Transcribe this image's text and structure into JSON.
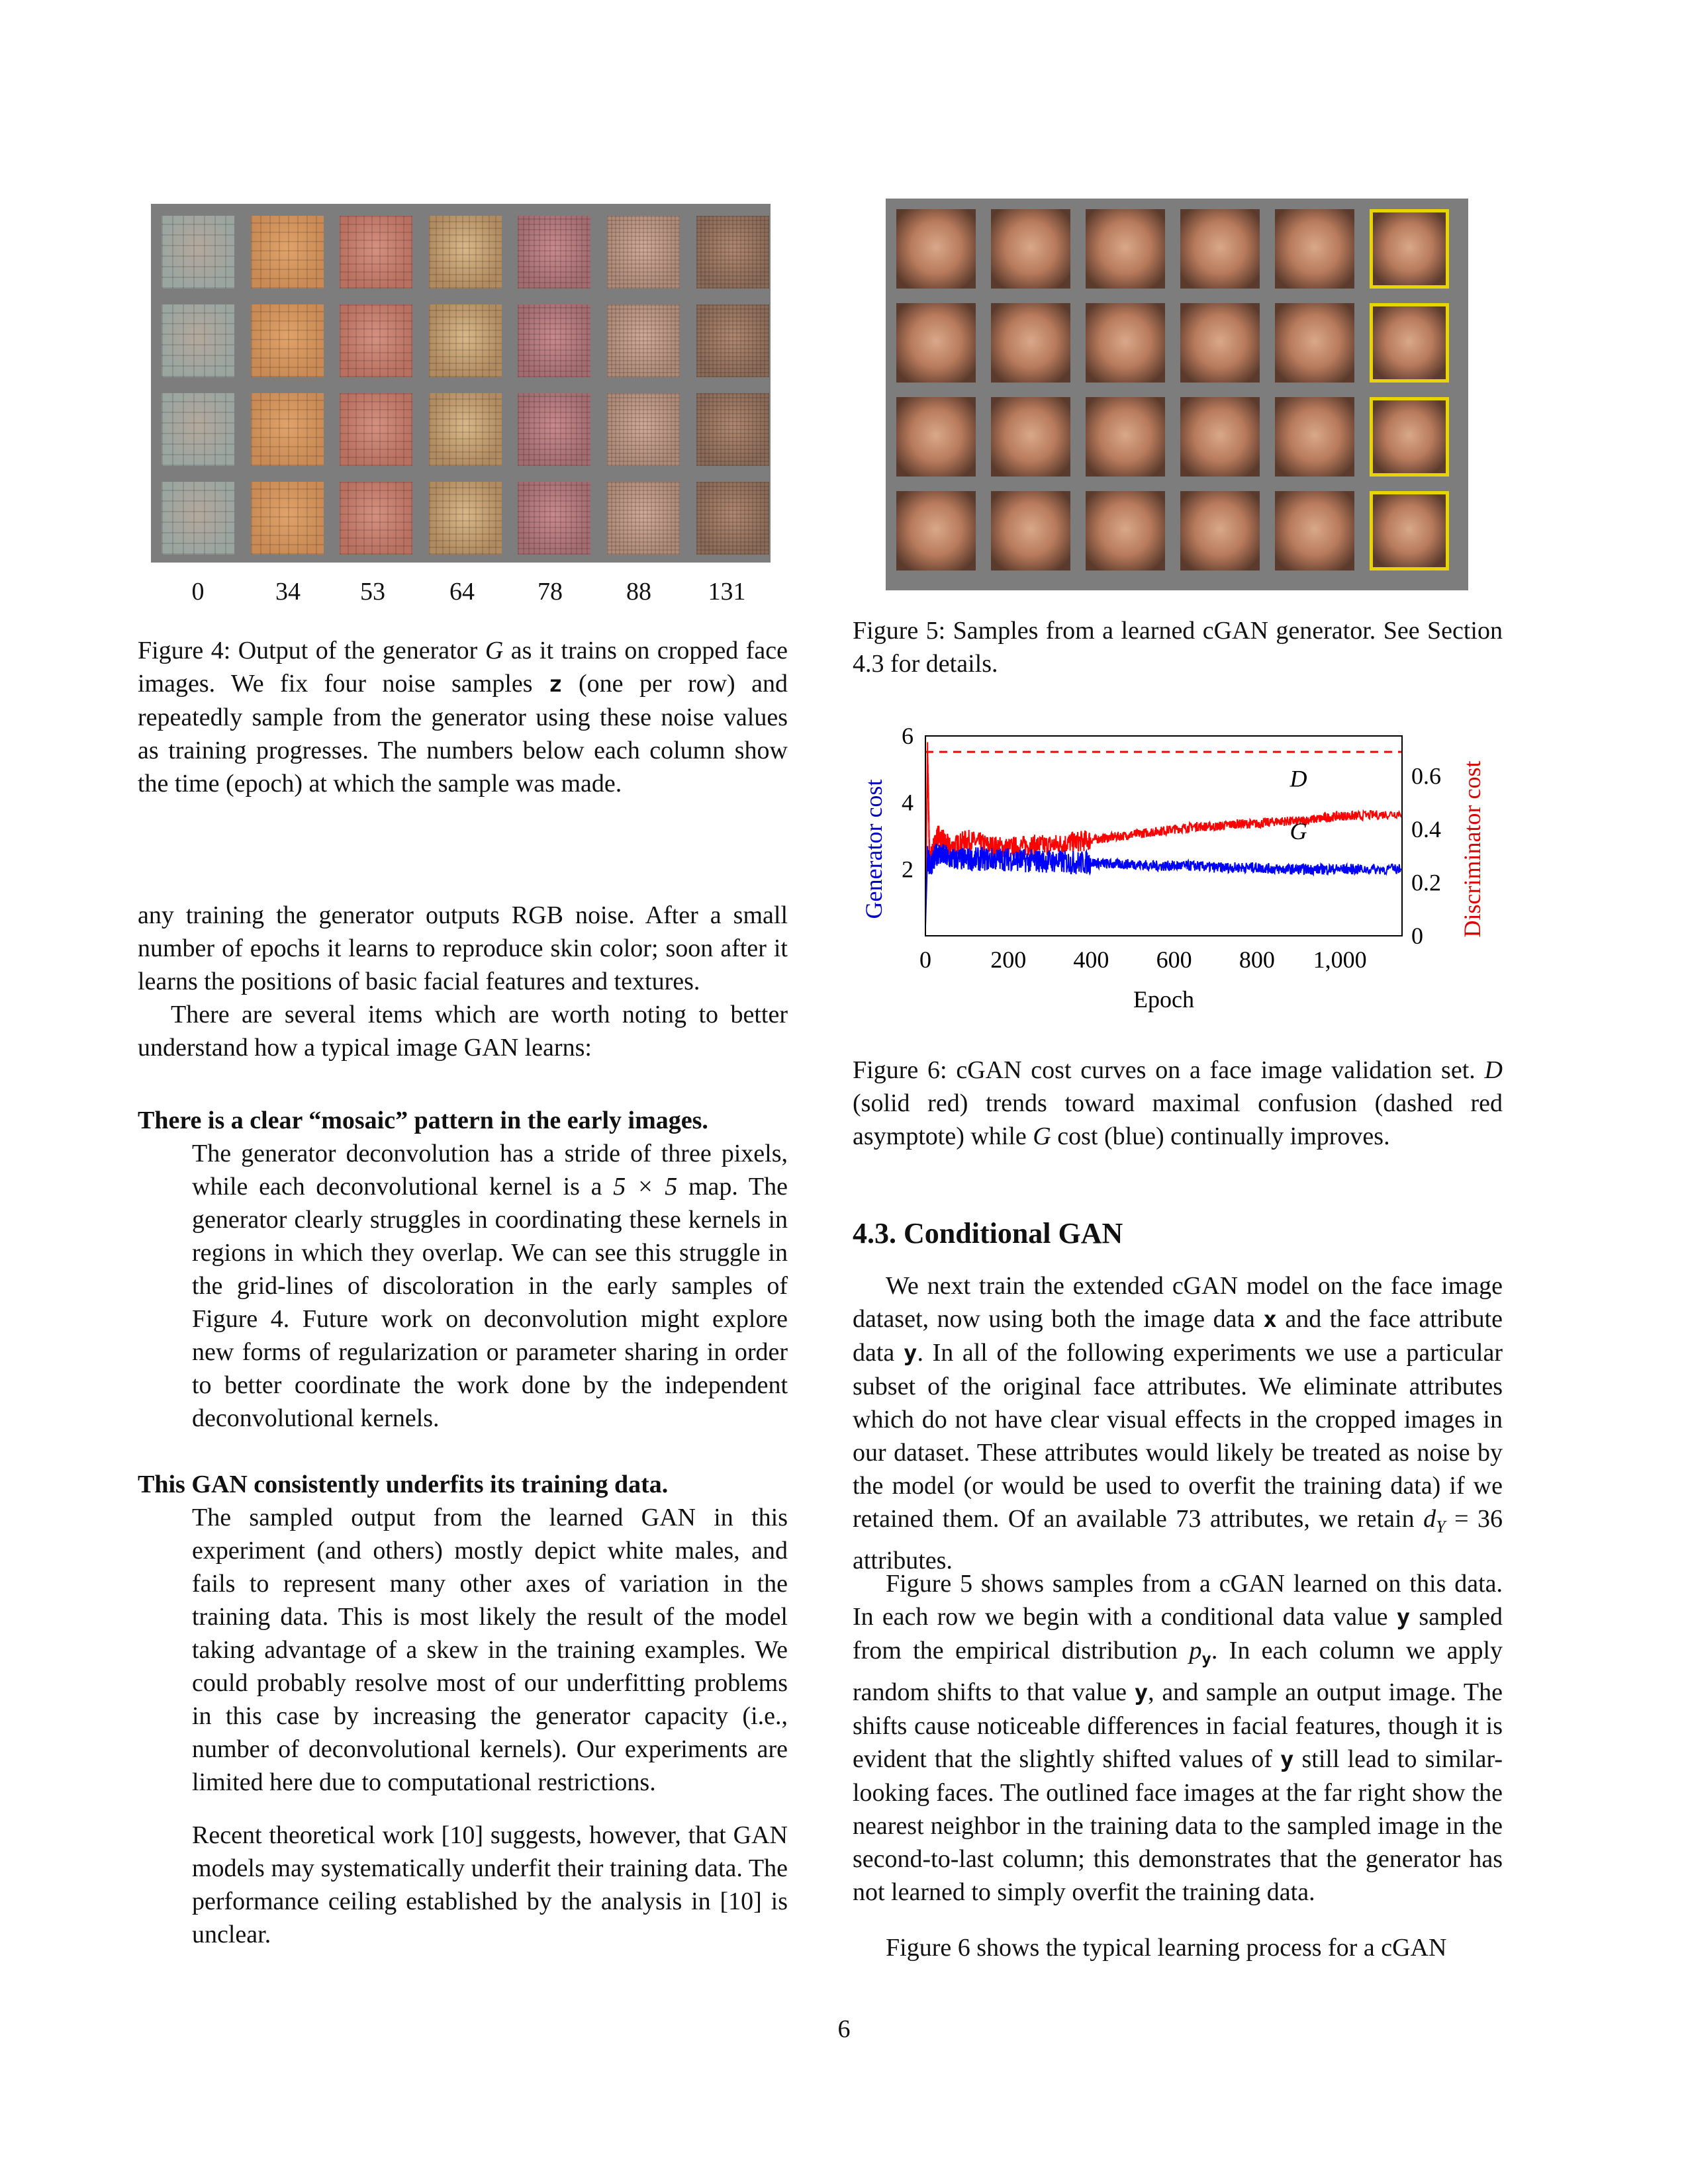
{
  "figure4": {
    "epoch_labels": [
      "0",
      "34",
      "53",
      "64",
      "78",
      "88",
      "131"
    ],
    "caption_prefix": "Figure 4: Output of the generator",
    "caption_sym_G": "G",
    "caption_mid": "as it trains on cropped face images. We fix four noise samples",
    "caption_sym_z": "z",
    "caption_rest": "(one per row) and repeatedly sample from the generator using these noise values as training progresses. The numbers below each column show the time (epoch) at which the sample was made."
  },
  "figure5": {
    "caption": "Figure 5: Samples from a learned cGAN generator. See Section 4.3 for details."
  },
  "figure6": {
    "caption_prefix": "Figure 6: cGAN cost curves on a face image validation set.",
    "caption_D": "D",
    "caption_mid": "(solid red) trends toward maximal confusion (dashed red asymptote) while",
    "caption_G": "G",
    "caption_rest": "cost (blue) continually improves."
  },
  "chart_data": {
    "type": "line",
    "xlabel": "Epoch",
    "ylabel": "Generator cost",
    "y2label": "Discriminator cost",
    "x_ticks": [
      "0",
      "200",
      "400",
      "600",
      "800",
      "1,000"
    ],
    "y_ticks": [
      "2",
      "4",
      "6"
    ],
    "y2_ticks": [
      "0",
      "0.2",
      "0.4",
      "0.6"
    ],
    "xlim": [
      0,
      1150
    ],
    "ylim": [
      0,
      6
    ],
    "y2lim": [
      0,
      0.75
    ],
    "series": [
      {
        "name": "D",
        "axis": "right",
        "color": "#ff0000",
        "x": [
          0,
          5,
          10,
          30,
          60,
          100,
          150,
          200,
          250,
          300,
          350,
          400,
          450,
          500,
          550,
          600,
          650,
          700,
          750,
          800,
          850,
          900,
          950,
          1000,
          1050,
          1150
        ],
        "y": [
          0.05,
          0.7,
          0.28,
          0.38,
          0.33,
          0.36,
          0.34,
          0.33,
          0.34,
          0.34,
          0.35,
          0.36,
          0.37,
          0.38,
          0.39,
          0.4,
          0.41,
          0.41,
          0.42,
          0.42,
          0.43,
          0.43,
          0.44,
          0.45,
          0.45,
          0.46
        ]
      },
      {
        "name": "G",
        "axis": "left",
        "color": "#0000ff",
        "x": [
          0,
          5,
          10,
          30,
          60,
          100,
          150,
          200,
          250,
          300,
          350,
          400,
          450,
          500,
          550,
          600,
          650,
          700,
          750,
          800,
          850,
          900,
          950,
          1000,
          1050,
          1150
        ],
        "y": [
          0.3,
          2.4,
          2.1,
          2.5,
          2.3,
          2.3,
          2.3,
          2.3,
          2.25,
          2.25,
          2.2,
          2.2,
          2.15,
          2.15,
          2.1,
          2.1,
          2.1,
          2.05,
          2.05,
          2.05,
          2.0,
          2.0,
          2.0,
          2.0,
          2.0,
          2.0
        ]
      },
      {
        "name": "",
        "axis": "right",
        "color": "#ff0000",
        "dashed": true,
        "x": [
          0,
          1150
        ],
        "y": [
          0.69,
          0.69
        ]
      }
    ],
    "annotations": [
      {
        "text": "D",
        "x": 900,
        "y2": 0.56
      },
      {
        "text": "G",
        "x": 900,
        "y": 2.9
      }
    ]
  },
  "left_column": {
    "intro_para": "any training the generator outputs RGB noise. After a small number of epochs it learns to reproduce skin color; soon after it learns the positions of basic facial features and textures.",
    "items_para": "There are several items which are worth noting to better understand how a typical image GAN learns:",
    "item1_heading": "There is a clear “mosaic” pattern in the early images.",
    "item1_text_a": "The generator deconvolution has a stride of three pixels, while each deconvolutional kernel is a",
    "item1_math": "5 × 5",
    "item1_text_b": "map. The generator clearly struggles in coordinating these kernels in regions in which they overlap. We can see this struggle in the grid-lines of discoloration in the early samples of Figure 4. Future work on deconvolution might explore new forms of regularization or parameter sharing in order to better coordinate the work done by the independent deconvolutional kernels.",
    "item2_heading": "This GAN consistently underfits its training data.",
    "item2_text": "The sampled output from the learned GAN in this experiment (and others) mostly depict white males, and fails to represent many other axes of variation in the training data. This is most likely the result of the model taking advantage of a skew in the training examples. We could probably resolve most of our underfitting problems in this case by increasing the generator capacity (i.e., number of deconvolutional kernels). Our experiments are limited here due to computational restrictions.",
    "item2_text2": "Recent theoretical work [10] suggests, however, that GAN models may systematically underfit their training data. The performance ceiling established by the analysis in [10] is unclear."
  },
  "right_column": {
    "section_title": "4.3. Conditional GAN",
    "p1_a": "We next train the extended cGAN model on the face image dataset, now using both the image data",
    "p1_x": "x",
    "p1_b": "and the face attribute data",
    "p1_y": "y",
    "p1_c": ". In all of the following experiments we use a particular subset of the original face attributes. We eliminate attributes which do not have clear visual effects in the cropped images in our dataset. These attributes would likely be treated as noise by the model (or would be used to overfit the training data) if we retained them. Of an available 73 attributes, we retain",
    "p1_math": "d",
    "p1_sub": "Y",
    "p1_eq": " = 36",
    "p1_d": "attributes.",
    "p2_a": "Figure 5 shows samples from a cGAN learned on this data. In each row we begin with a conditional data value",
    "p2_y1": "y",
    "p2_b": "sampled from the empirical distribution",
    "p2_p": "p",
    "p2_py": "y",
    "p2_c": ". In each column we apply random shifts to that value",
    "p2_y2": "y",
    "p2_d": ", and sample an output image. The shifts cause noticeable differences in facial features, though it is evident that the slightly shifted values of",
    "p2_y3": "y",
    "p2_e": "still lead to similar-looking faces. The outlined face images at the far right show the nearest neighbor in the training data to the sampled image in the second-to-last column; this demonstrates that the generator has not learned to simply overfit the training data.",
    "p3": "Figure 6 shows the typical learning process for a cGAN"
  },
  "page_number": "6"
}
